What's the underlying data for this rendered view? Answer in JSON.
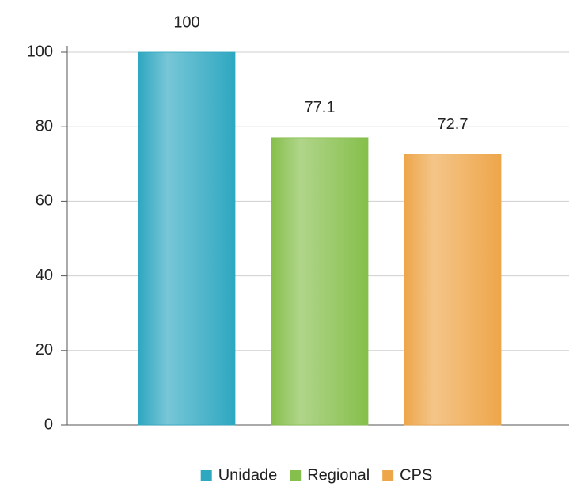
{
  "chart_data": {
    "type": "bar",
    "categories": [
      null
    ],
    "series": [
      {
        "name": "Unidade",
        "color": "#2ea7c1",
        "values": [
          100
        ]
      },
      {
        "name": "Regional",
        "color": "#86bf4b",
        "values": [
          77.1
        ]
      },
      {
        "name": "CPS",
        "color": "#eea64a",
        "values": [
          72.7
        ]
      }
    ],
    "ylim": [
      0,
      100
    ],
    "yticks": [
      0,
      20,
      40,
      60,
      80,
      100
    ],
    "grid": true,
    "legend": "bottom"
  }
}
